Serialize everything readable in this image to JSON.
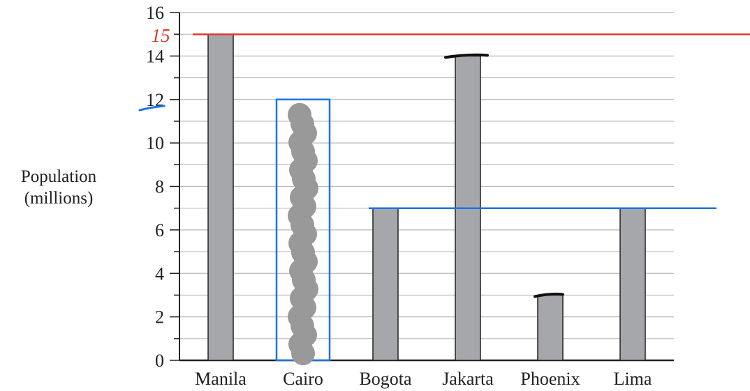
{
  "chart_data": {
    "type": "bar",
    "title": "",
    "xlabel": "",
    "ylabel": [
      "Population",
      "(millions)"
    ],
    "categories": [
      "Manila",
      "Cairo",
      "Bogota",
      "Jakarta",
      "Phoenix",
      "Lima"
    ],
    "values": [
      15,
      12,
      7,
      14,
      3,
      7
    ],
    "ylim": [
      0,
      16
    ],
    "yticks": [
      0,
      2,
      4,
      6,
      8,
      10,
      12,
      14,
      16
    ],
    "minor_grid_step": 1,
    "grid": true,
    "bar_color": "#a6a7ab",
    "annotations": {
      "red_line": {
        "y": 15,
        "label": "15",
        "color": "#e03a2f"
      },
      "blue_line": {
        "y": 7,
        "color": "#1a73e8"
      },
      "blue_tick_marker": {
        "y": 12,
        "color": "#1a73e8"
      },
      "cairo_outline": {
        "category": "Cairo",
        "value": 12,
        "color": "#1a73e8"
      },
      "cairo_scribble_color": "#999999",
      "black_marks": [
        {
          "category": "Jakarta",
          "y": 14
        },
        {
          "category": "Phoenix",
          "y": 3
        }
      ]
    }
  }
}
